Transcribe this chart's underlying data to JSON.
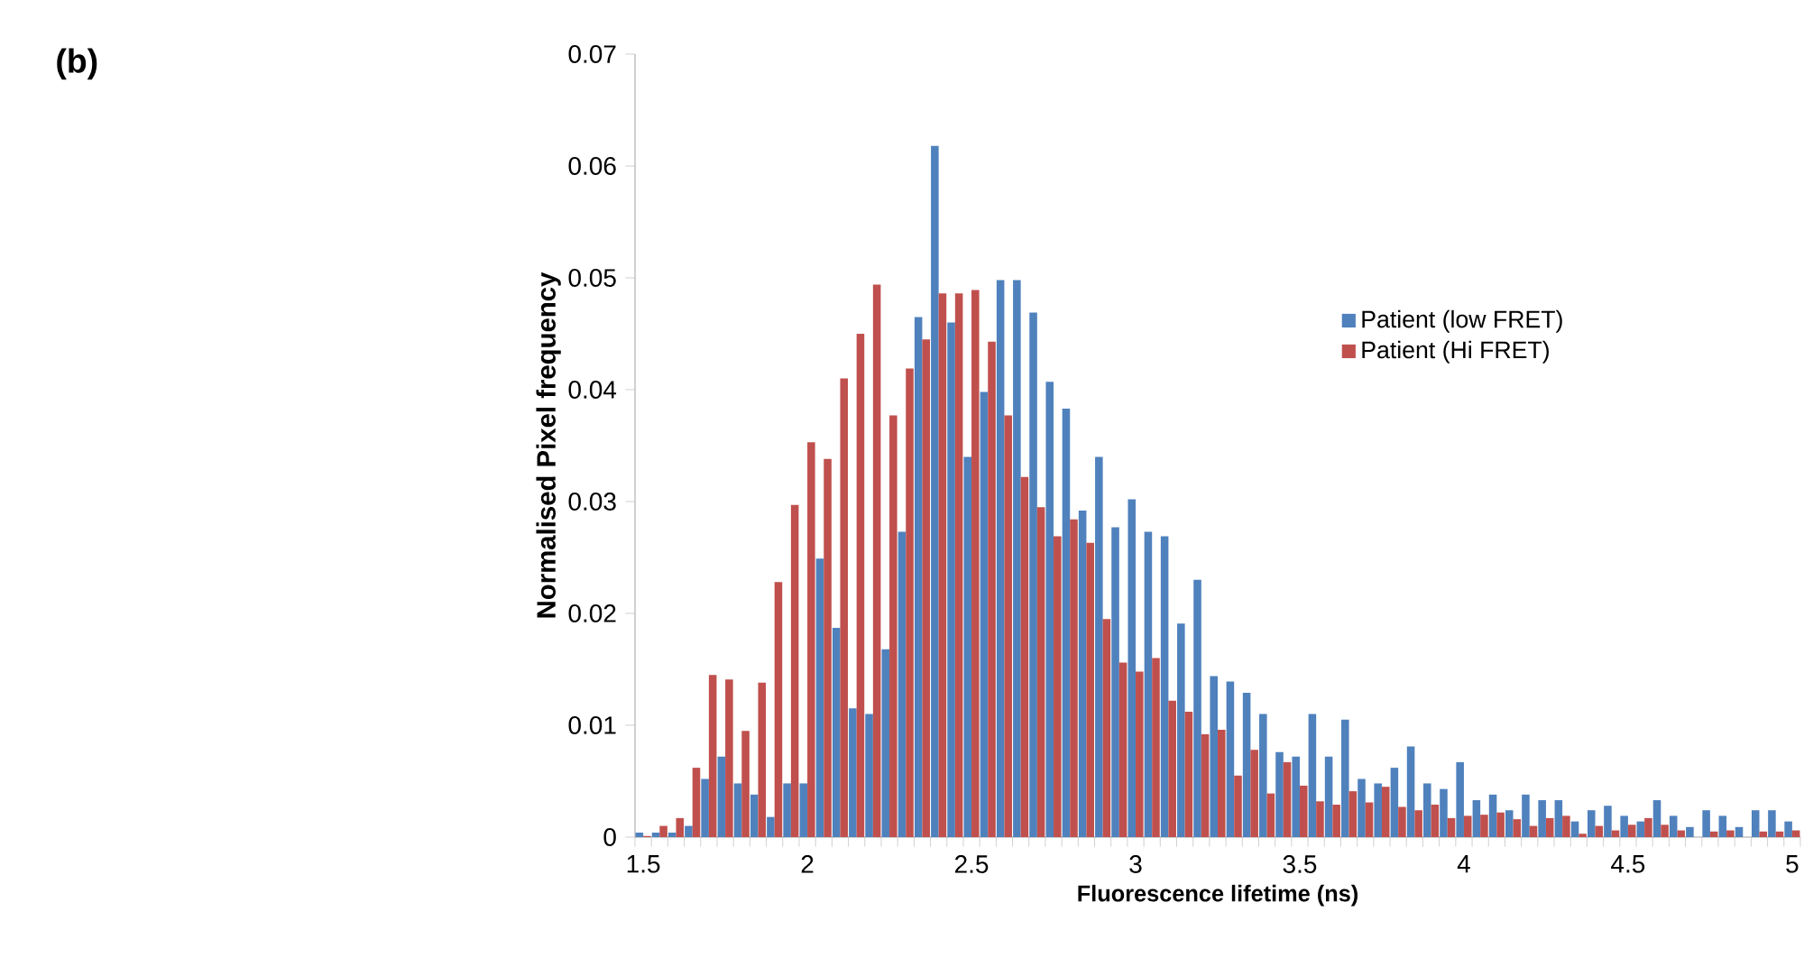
{
  "chart_data": {
    "type": "bar",
    "title": "(b)",
    "xlabel": "Fluorescence lifetime (ns)",
    "ylabel": "Normalised Pixel frequency",
    "categories": [
      "1.5",
      null,
      null,
      null,
      null,
      null,
      null,
      null,
      null,
      null,
      "2",
      null,
      null,
      null,
      null,
      null,
      null,
      null,
      null,
      null,
      "2.5",
      null,
      null,
      null,
      null,
      null,
      null,
      null,
      null,
      null,
      "3",
      null,
      null,
      null,
      null,
      null,
      null,
      null,
      null,
      null,
      "3.5",
      null,
      null,
      null,
      null,
      null,
      null,
      null,
      null,
      null,
      "4",
      null,
      null,
      null,
      null,
      null,
      null,
      null,
      null,
      null,
      "4.5",
      null,
      null,
      null,
      null,
      null,
      null,
      null,
      null,
      null,
      "5"
    ],
    "series": [
      {
        "name": "Patient (low FRET)",
        "color": "#4f81bd",
        "values": [
          0.0004,
          0.0004,
          0.0004,
          0.001,
          0.0052,
          0.0072,
          0.0048,
          0.0038,
          0.0018,
          0.0048,
          0.0048,
          0.0249,
          0.0187,
          0.0115,
          0.011,
          0.0168,
          0.0273,
          0.0465,
          0.0618,
          0.046,
          0.034,
          0.0398,
          0.0498,
          0.0498,
          0.0469,
          0.0407,
          0.0383,
          0.0292,
          0.034,
          0.0277,
          0.0302,
          0.0273,
          0.0269,
          0.0191,
          0.023,
          0.0144,
          0.0139,
          0.0129,
          0.011,
          0.0076,
          0.0072,
          0.011,
          0.0072,
          0.0105,
          0.0052,
          0.0048,
          0.0062,
          0.0081,
          0.0048,
          0.0043,
          0.0067,
          0.0033,
          0.0038,
          0.0024,
          0.0038,
          0.0033,
          0.0033,
          0.0014,
          0.0024,
          0.0028,
          0.0019,
          0.0014,
          0.0033,
          0.0019,
          0.0009,
          0.0024,
          0.0019,
          0.0009,
          0.0024,
          0.0024,
          0.0014
        ]
      },
      {
        "name": "Patient (Hi FRET)",
        "color": "#c0504d",
        "values": [
          0.0001,
          0.001,
          0.0017,
          0.0062,
          0.0145,
          0.0141,
          0.0095,
          0.0138,
          0.0228,
          0.0297,
          0.0353,
          0.0338,
          0.041,
          0.045,
          0.0494,
          0.0377,
          0.0419,
          0.0445,
          0.0486,
          0.0486,
          0.0489,
          0.0443,
          0.0377,
          0.0322,
          0.0295,
          0.0269,
          0.0284,
          0.0263,
          0.0195,
          0.0156,
          0.0148,
          0.016,
          0.0122,
          0.0112,
          0.0092,
          0.0096,
          0.0055,
          0.0078,
          0.0039,
          0.0067,
          0.0046,
          0.0032,
          0.0029,
          0.0041,
          0.0031,
          0.0045,
          0.0027,
          0.0024,
          0.0029,
          0.0017,
          0.0019,
          0.002,
          0.0022,
          0.0016,
          0.001,
          0.0017,
          0.0019,
          0.0003,
          0.001,
          0.0006,
          0.0011,
          0.0017,
          0.0011,
          0.0006,
          0,
          0.0005,
          0.0006,
          0,
          0.0005,
          0.0005,
          0.0006
        ]
      }
    ],
    "ylim": [
      0,
      0.07
    ],
    "yticks": [
      0,
      0.01,
      0.02,
      0.03,
      0.04,
      0.05,
      0.06,
      0.07
    ],
    "legend": "right"
  }
}
